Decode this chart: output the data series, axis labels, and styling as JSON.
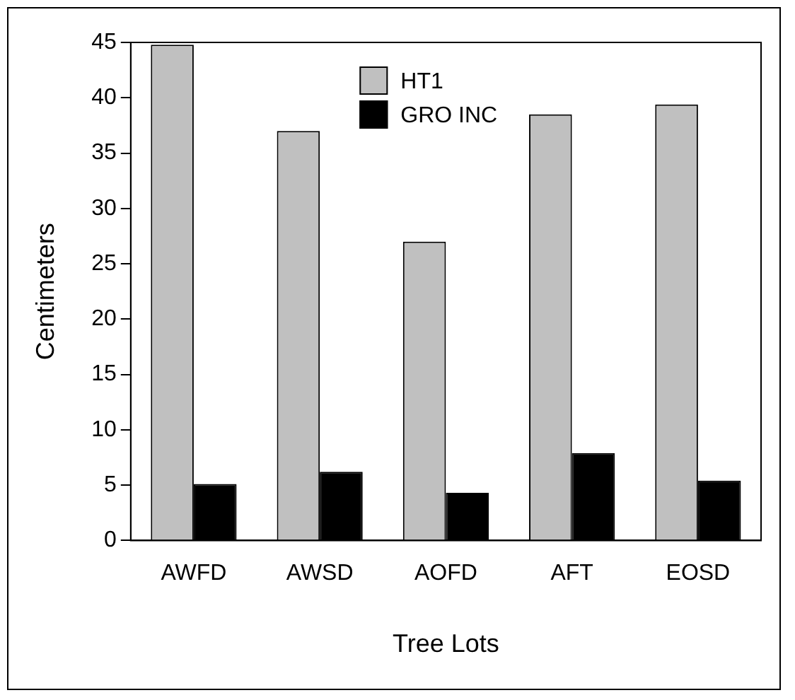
{
  "chart_data": {
    "type": "bar",
    "xlabel": "Tree Lots",
    "ylabel": "Centimeters",
    "categories": [
      "AWFD",
      "AWSD",
      "AOFD",
      "AFT",
      "EOSD"
    ],
    "series": [
      {
        "name": "HT1",
        "color": "#c0c0c0",
        "values": [
          44.8,
          37.0,
          27.0,
          38.5,
          39.4
        ]
      },
      {
        "name": "GRO INC",
        "color": "#000000",
        "values": [
          5.1,
          6.2,
          4.3,
          7.9,
          5.4
        ]
      }
    ],
    "ylim": [
      0,
      45
    ],
    "yticks": [
      0,
      5,
      10,
      15,
      20,
      25,
      30,
      35,
      40,
      45
    ],
    "grid": false,
    "legend": "top"
  }
}
